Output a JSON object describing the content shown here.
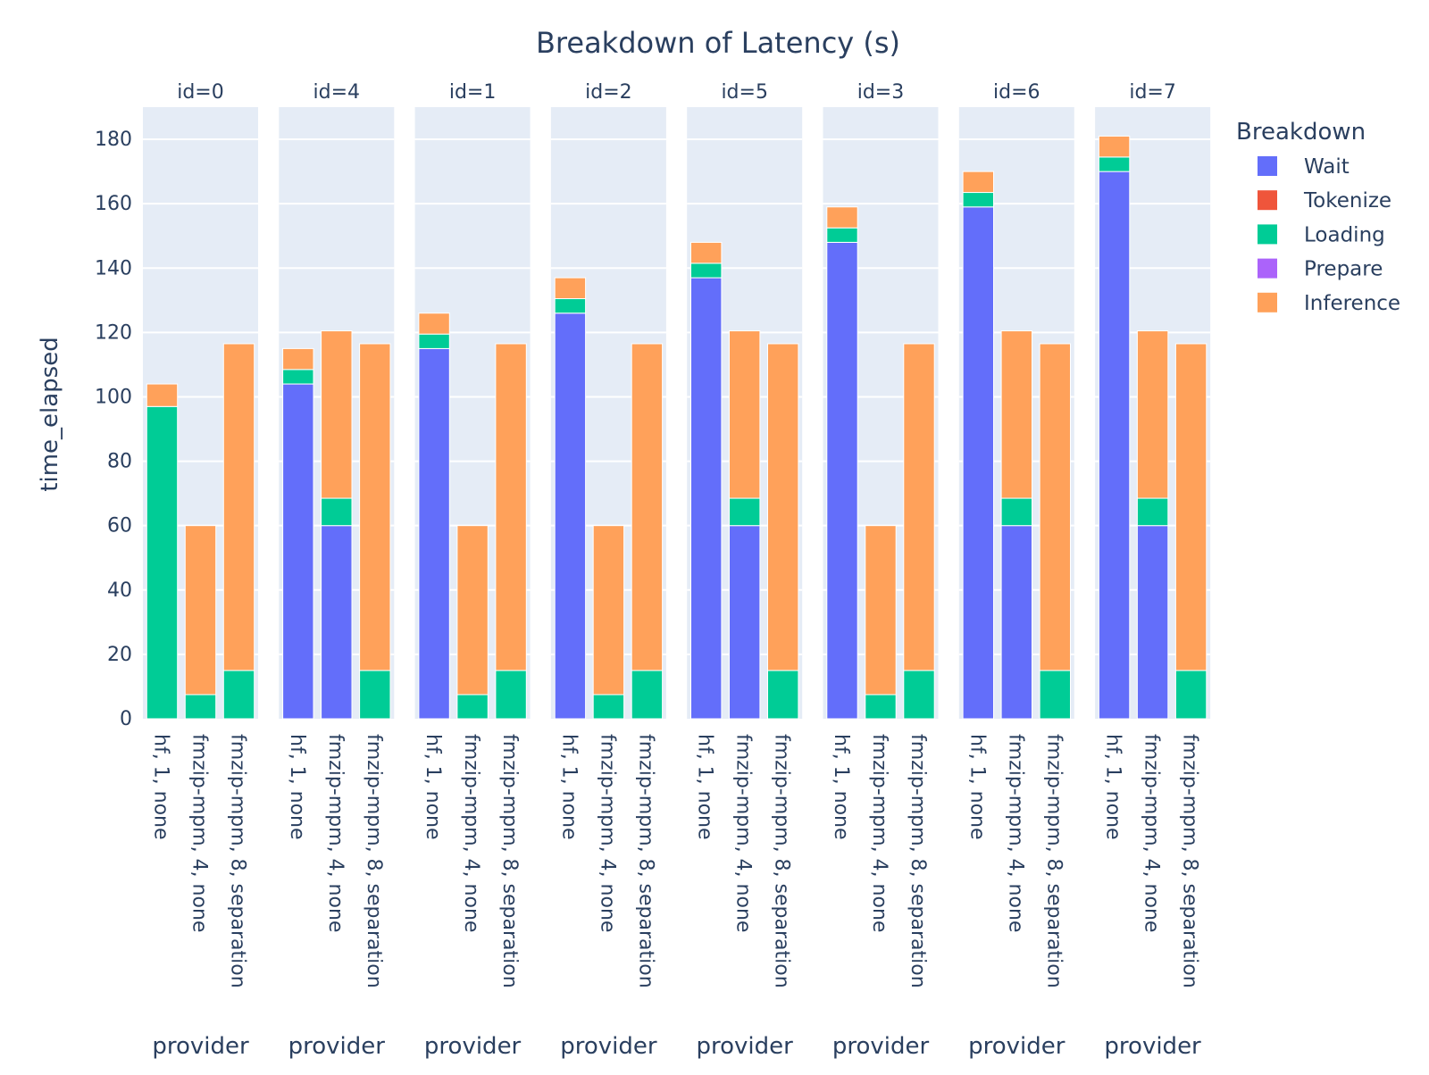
{
  "chart_data": {
    "type": "bar",
    "barmode": "stack",
    "title": "Breakdown of Latency (s)",
    "ylabel": "time_elapsed",
    "xlabel": "provider",
    "ylim": [
      0,
      190
    ],
    "yticks": [
      0,
      20,
      40,
      60,
      80,
      100,
      120,
      140,
      160,
      180
    ],
    "grid": true,
    "legend_title": "Breakdown",
    "legend_position": "right",
    "series": [
      {
        "name": "Wait",
        "color": "#636efa"
      },
      {
        "name": "Tokenize",
        "color": "#ef553b"
      },
      {
        "name": "Loading",
        "color": "#00cc96"
      },
      {
        "name": "Prepare",
        "color": "#ab63fa"
      },
      {
        "name": "Inference",
        "color": "#ffa15a"
      }
    ],
    "categories": [
      "hf, 1, none",
      "fmzip-mpm, 4, none",
      "fmzip-mpm, 8, separation"
    ],
    "facets": [
      {
        "label": "id=0",
        "bars": [
          {
            "Wait": 0,
            "Tokenize": 0,
            "Loading": 97,
            "Prepare": 0,
            "Inference": 7
          },
          {
            "Wait": 0,
            "Tokenize": 0,
            "Loading": 7.5,
            "Prepare": 0,
            "Inference": 52.5
          },
          {
            "Wait": 0,
            "Tokenize": 0,
            "Loading": 15,
            "Prepare": 0,
            "Inference": 101.5
          }
        ]
      },
      {
        "label": "id=4",
        "bars": [
          {
            "Wait": 104,
            "Tokenize": 0,
            "Loading": 4.5,
            "Prepare": 0,
            "Inference": 6.5
          },
          {
            "Wait": 60,
            "Tokenize": 0,
            "Loading": 8.5,
            "Prepare": 0,
            "Inference": 52
          },
          {
            "Wait": 0,
            "Tokenize": 0,
            "Loading": 15,
            "Prepare": 0,
            "Inference": 101.5
          }
        ]
      },
      {
        "label": "id=1",
        "bars": [
          {
            "Wait": 115,
            "Tokenize": 0,
            "Loading": 4.5,
            "Prepare": 0,
            "Inference": 6.5
          },
          {
            "Wait": 0,
            "Tokenize": 0,
            "Loading": 7.5,
            "Prepare": 0,
            "Inference": 52.5
          },
          {
            "Wait": 0,
            "Tokenize": 0,
            "Loading": 15,
            "Prepare": 0,
            "Inference": 101.5
          }
        ]
      },
      {
        "label": "id=2",
        "bars": [
          {
            "Wait": 126,
            "Tokenize": 0,
            "Loading": 4.5,
            "Prepare": 0,
            "Inference": 6.5
          },
          {
            "Wait": 0,
            "Tokenize": 0,
            "Loading": 7.5,
            "Prepare": 0,
            "Inference": 52.5
          },
          {
            "Wait": 0,
            "Tokenize": 0,
            "Loading": 15,
            "Prepare": 0,
            "Inference": 101.5
          }
        ]
      },
      {
        "label": "id=5",
        "bars": [
          {
            "Wait": 137,
            "Tokenize": 0,
            "Loading": 4.5,
            "Prepare": 0,
            "Inference": 6.5
          },
          {
            "Wait": 60,
            "Tokenize": 0,
            "Loading": 8.5,
            "Prepare": 0,
            "Inference": 52
          },
          {
            "Wait": 0,
            "Tokenize": 0,
            "Loading": 15,
            "Prepare": 0,
            "Inference": 101.5
          }
        ]
      },
      {
        "label": "id=3",
        "bars": [
          {
            "Wait": 148,
            "Tokenize": 0,
            "Loading": 4.5,
            "Prepare": 0,
            "Inference": 6.5
          },
          {
            "Wait": 0,
            "Tokenize": 0,
            "Loading": 7.5,
            "Prepare": 0,
            "Inference": 52.5
          },
          {
            "Wait": 0,
            "Tokenize": 0,
            "Loading": 15,
            "Prepare": 0,
            "Inference": 101.5
          }
        ]
      },
      {
        "label": "id=6",
        "bars": [
          {
            "Wait": 159,
            "Tokenize": 0,
            "Loading": 4.5,
            "Prepare": 0,
            "Inference": 6.5
          },
          {
            "Wait": 60,
            "Tokenize": 0,
            "Loading": 8.5,
            "Prepare": 0,
            "Inference": 52
          },
          {
            "Wait": 0,
            "Tokenize": 0,
            "Loading": 15,
            "Prepare": 0,
            "Inference": 101.5
          }
        ]
      },
      {
        "label": "id=7",
        "bars": [
          {
            "Wait": 170,
            "Tokenize": 0,
            "Loading": 4.5,
            "Prepare": 0,
            "Inference": 6.5
          },
          {
            "Wait": 60,
            "Tokenize": 0,
            "Loading": 8.5,
            "Prepare": 0,
            "Inference": 52
          },
          {
            "Wait": 0,
            "Tokenize": 0,
            "Loading": 15,
            "Prepare": 0,
            "Inference": 101.5
          }
        ]
      }
    ]
  }
}
